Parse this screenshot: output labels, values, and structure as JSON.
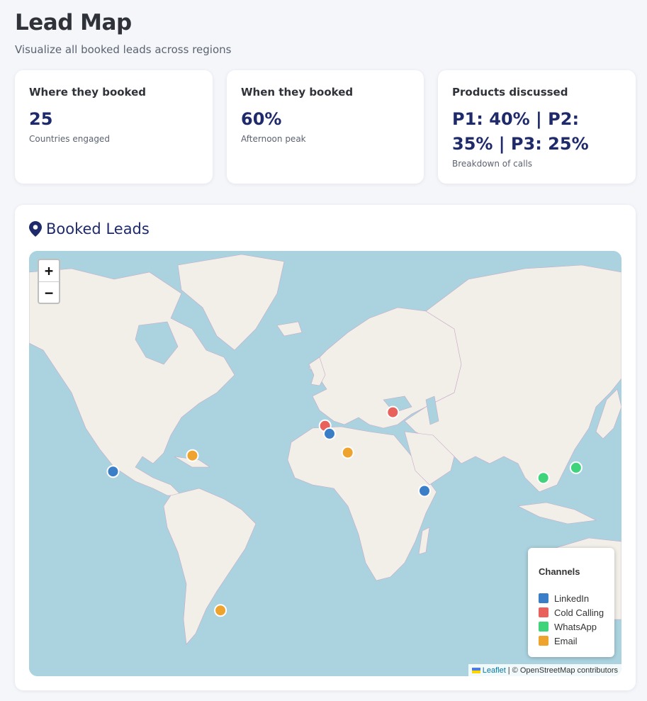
{
  "header": {
    "title": "Lead Map",
    "subtitle": "Visualize all booked leads across regions"
  },
  "stats": [
    {
      "title": "Where they booked",
      "value": "25",
      "desc": "Countries engaged"
    },
    {
      "title": "When they booked",
      "value": "60%",
      "desc": "Afternoon peak"
    },
    {
      "title": "Products discussed",
      "value": "P1: 40% | P2: 35% | P3: 25%",
      "desc": "Breakdown of calls"
    }
  ],
  "map": {
    "title": "Booked Leads",
    "title_icon": "map-pin-icon",
    "zoom_in": "+",
    "zoom_out": "−",
    "legend": {
      "title": "Channels",
      "items": [
        {
          "label": "LinkedIn",
          "color": "#3a7ec8"
        },
        {
          "label": "Cold Calling",
          "color": "#e8615a"
        },
        {
          "label": "WhatsApp",
          "color": "#3fd47c"
        },
        {
          "label": "Email",
          "color": "#efa32f"
        }
      ]
    },
    "attribution": {
      "leaflet": "Leaflet",
      "separator": "|",
      "rest": "© OpenStreetMap contributors"
    },
    "colors": {
      "water": "#aad3df",
      "land": "#f2efe9",
      "border": "#c9a9c8"
    },
    "markers": [
      {
        "channel": "LinkedIn",
        "lat": 34.05,
        "lng": -118.24
      },
      {
        "channel": "Email",
        "lat": 40.71,
        "lng": -74.0
      },
      {
        "channel": "Cold Calling",
        "lat": 51.5,
        "lng": -0.12
      },
      {
        "channel": "LinkedIn",
        "lat": 48.85,
        "lng": 2.35
      },
      {
        "channel": "Email",
        "lat": 41.9,
        "lng": 12.5
      },
      {
        "channel": "Cold Calling",
        "lat": 55.75,
        "lng": 37.62
      },
      {
        "channel": "LinkedIn",
        "lat": 25.2,
        "lng": 55.27
      },
      {
        "channel": "WhatsApp",
        "lat": 31.23,
        "lng": 121.47
      },
      {
        "channel": "WhatsApp",
        "lat": 35.68,
        "lng": 139.69
      },
      {
        "channel": "Email",
        "lat": -34.6,
        "lng": -58.38
      }
    ]
  }
}
